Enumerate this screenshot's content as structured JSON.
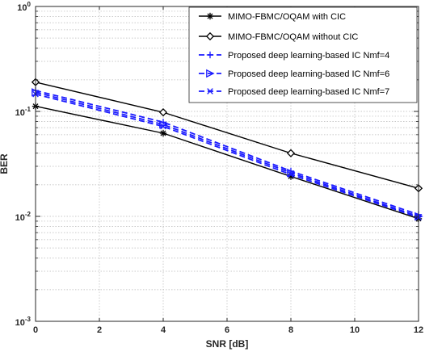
{
  "chart_data": {
    "type": "line",
    "title": "",
    "xlabel": "SNR [dB]",
    "ylabel": "BER",
    "xlim": [
      0,
      12
    ],
    "ylim": [
      0.001,
      1
    ],
    "yscale": "log",
    "grid": true,
    "legend_position": "top-right",
    "x": [
      0,
      4,
      8,
      12
    ],
    "x_ticks": [
      "0",
      "2",
      "4",
      "6",
      "8",
      "10",
      "12"
    ],
    "y_ticks": [
      {
        "base": "10",
        "exp": "0"
      },
      {
        "base": "10",
        "exp": "-1"
      },
      {
        "base": "10",
        "exp": "-2"
      },
      {
        "base": "10",
        "exp": "-3"
      }
    ],
    "series": [
      {
        "name": "MIMO-FBMC/OQAM with CIC",
        "values": [
          0.112,
          0.062,
          0.024,
          0.0095
        ],
        "color": "#000000",
        "dash": "solid",
        "marker": "asterisk"
      },
      {
        "name": "MIMO-FBMC/OQAM without CIC",
        "values": [
          0.19,
          0.098,
          0.04,
          0.0185
        ],
        "color": "#000000",
        "dash": "solid",
        "marker": "diamond"
      },
      {
        "name": "Proposed  deep learning-based IC Nmf=4",
        "values": [
          0.158,
          0.079,
          0.027,
          0.0104
        ],
        "color": "#1a1aff",
        "dash": "dashed",
        "marker": "plus"
      },
      {
        "name": "Proposed  deep learning-based IC Nmf=6",
        "values": [
          0.152,
          0.075,
          0.026,
          0.01
        ],
        "color": "#1a1aff",
        "dash": "dashed",
        "marker": "triangle-right"
      },
      {
        "name": "Proposed  deep learning-based IC Nmf=7",
        "values": [
          0.146,
          0.072,
          0.025,
          0.0098
        ],
        "color": "#1a1aff",
        "dash": "dashed",
        "marker": "x"
      }
    ]
  }
}
